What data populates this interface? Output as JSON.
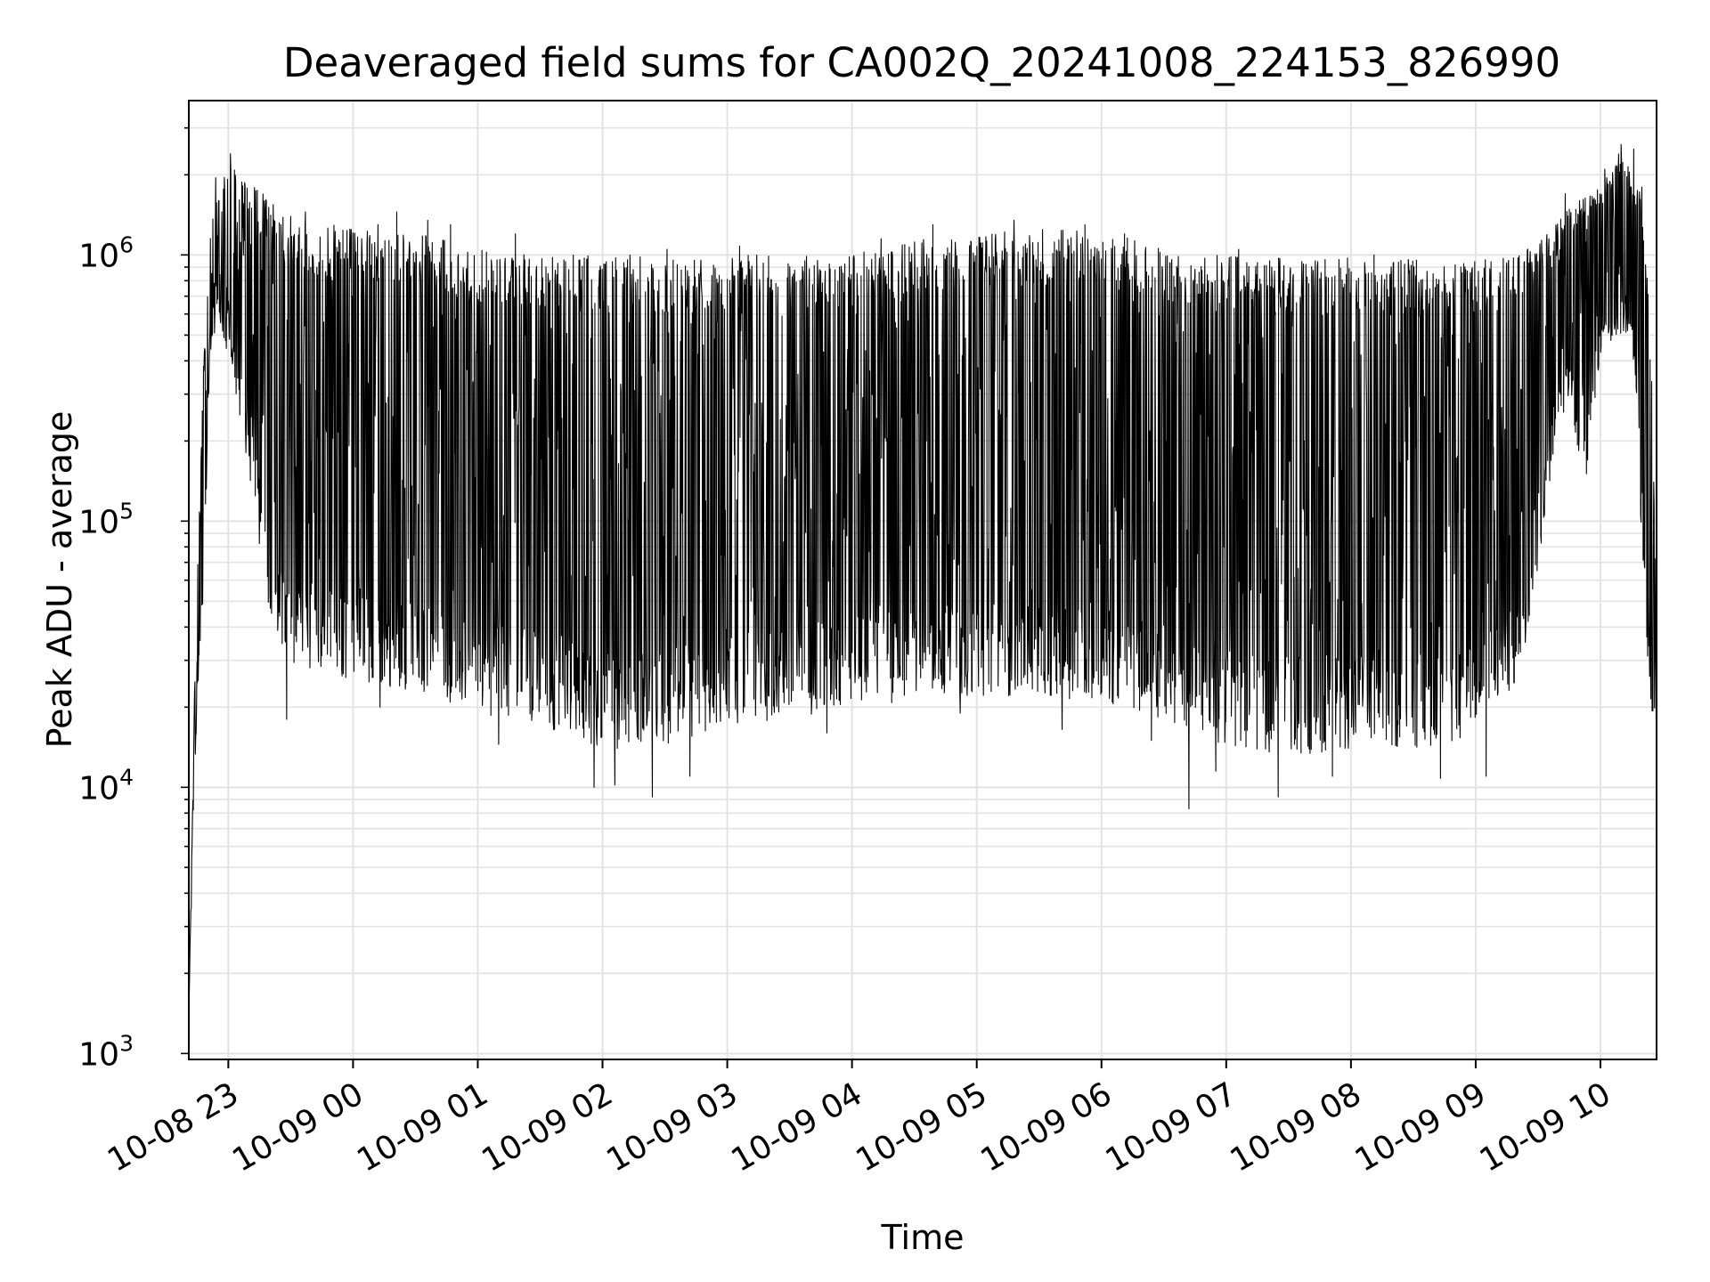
{
  "chart_data": {
    "type": "line",
    "title": "Deaveraged field sums for CA002Q_20241008_224153_826990",
    "xlabel": "Time",
    "ylabel": "Peak ADU - average",
    "yscale": "log",
    "ylim": [
      950,
      3800000
    ],
    "xlim": [
      "2024-10-08 22:41",
      "2024-10-09 10:27"
    ],
    "grid": true,
    "x_ticks": [
      {
        "value": "2024-10-08 23:00",
        "label": "10-08 23"
      },
      {
        "value": "2024-10-09 00:00",
        "label": "10-09 00"
      },
      {
        "value": "2024-10-09 01:00",
        "label": "10-09 01"
      },
      {
        "value": "2024-10-09 02:00",
        "label": "10-09 02"
      },
      {
        "value": "2024-10-09 03:00",
        "label": "10-09 03"
      },
      {
        "value": "2024-10-09 04:00",
        "label": "10-09 04"
      },
      {
        "value": "2024-10-09 05:00",
        "label": "10-09 05"
      },
      {
        "value": "2024-10-09 06:00",
        "label": "10-09 06"
      },
      {
        "value": "2024-10-09 07:00",
        "label": "10-09 07"
      },
      {
        "value": "2024-10-09 08:00",
        "label": "10-09 08"
      },
      {
        "value": "2024-10-09 09:00",
        "label": "10-09 09"
      },
      {
        "value": "2024-10-09 10:00",
        "label": "10-09 10"
      }
    ],
    "y_ticks": [
      {
        "value": 1000,
        "base": "10",
        "exp": "3"
      },
      {
        "value": 10000,
        "base": "10",
        "exp": "4"
      },
      {
        "value": 100000,
        "base": "10",
        "exp": "5"
      },
      {
        "value": 1000000,
        "base": "10",
        "exp": "6"
      }
    ],
    "series": [
      {
        "color": "#000000",
        "envelope_lower": {
          "x": [
            "2024-10-08 22:41",
            "2024-10-08 22:43",
            "2024-10-08 22:45",
            "2024-10-08 22:48",
            "2024-10-08 22:51",
            "2024-10-08 22:55",
            "2024-10-08 23:00",
            "2024-10-08 23:05",
            "2024-10-08 23:10",
            "2024-10-08 23:15",
            "2024-10-08 23:20",
            "2024-10-08 23:25",
            "2024-10-08 23:30",
            "2024-10-08 23:40",
            "2024-10-08 23:50",
            "2024-10-09 00:00",
            "2024-10-09 00:30",
            "2024-10-09 01:00",
            "2024-10-09 01:30",
            "2024-10-09 02:00",
            "2024-10-09 02:30",
            "2024-10-09 03:00",
            "2024-10-09 03:30",
            "2024-10-09 04:00",
            "2024-10-09 04:30",
            "2024-10-09 05:00",
            "2024-10-09 05:30",
            "2024-10-09 06:00",
            "2024-10-09 06:30",
            "2024-10-09 07:00",
            "2024-10-09 07:30",
            "2024-10-09 08:00",
            "2024-10-09 08:30",
            "2024-10-09 09:00",
            "2024-10-09 09:20",
            "2024-10-09 09:30",
            "2024-10-09 09:38",
            "2024-10-09 09:45",
            "2024-10-09 09:52",
            "2024-10-09 10:00",
            "2024-10-09 10:08",
            "2024-10-09 10:15",
            "2024-10-09 10:20",
            "2024-10-09 10:24",
            "2024-10-09 10:27"
          ],
          "y": [
            1400,
            6000,
            20000,
            45000,
            400000,
            600000,
            400000,
            250000,
            150000,
            80000,
            45000,
            32000,
            28000,
            27000,
            26000,
            25000,
            23000,
            19000,
            17000,
            14000,
            14000,
            17000,
            18000,
            20000,
            21000,
            22000,
            22000,
            21000,
            18000,
            14000,
            13000,
            14000,
            14000,
            15000,
            25000,
            60000,
            200000,
            300000,
            120000,
            400000,
            500000,
            500000,
            80000,
            18000,
            15000
          ]
        },
        "envelope_upper": {
          "x": [
            "2024-10-08 22:41",
            "2024-10-08 22:44",
            "2024-10-08 22:48",
            "2024-10-08 22:52",
            "2024-10-08 22:56",
            "2024-10-08 23:00",
            "2024-10-08 23:30",
            "2024-10-09 00:00",
            "2024-10-09 00:30",
            "2024-10-09 01:00",
            "2024-10-09 02:00",
            "2024-10-09 03:00",
            "2024-10-09 04:00",
            "2024-10-09 04:30",
            "2024-10-09 05:00",
            "2024-10-09 05:30",
            "2024-10-09 06:00",
            "2024-10-09 06:30",
            "2024-10-09 07:00",
            "2024-10-09 08:00",
            "2024-10-09 09:00",
            "2024-10-09 09:30",
            "2024-10-09 09:45",
            "2024-10-09 10:00",
            "2024-10-09 10:10",
            "2024-10-09 10:20",
            "2024-10-09 10:25",
            "2024-10-09 10:27"
          ],
          "y": [
            1400,
            30000,
            400000,
            1400000,
            1800000,
            2200000,
            1400000,
            1250000,
            1250000,
            1050000,
            1000000,
            1000000,
            1000000,
            1150000,
            1200000,
            1250000,
            1250000,
            1100000,
            1000000,
            980000,
            950000,
            1100000,
            1500000,
            1800000,
            2500000,
            1700000,
            400000,
            25000
          ]
        },
        "spikes": [
          [
            "2024-10-08 22:54",
            1950000
          ],
          [
            "2024-10-08 23:01",
            2400000
          ],
          [
            "2024-10-08 23:14",
            1750000
          ],
          [
            "2024-10-08 23:22",
            1350000
          ],
          [
            "2024-10-08 23:37",
            1450000
          ],
          [
            "2024-10-09 00:12",
            1300000
          ],
          [
            "2024-10-09 00:21",
            1450000
          ],
          [
            "2024-10-09 00:36",
            1350000
          ],
          [
            "2024-10-09 00:47",
            1300000
          ],
          [
            "2024-10-09 01:18",
            1200000
          ],
          [
            "2024-10-09 02:31",
            1050000
          ],
          [
            "2024-10-09 03:06",
            1080000
          ],
          [
            "2024-10-09 04:14",
            1150000
          ],
          [
            "2024-10-09 04:39",
            1300000
          ],
          [
            "2024-10-09 05:18",
            1350000
          ],
          [
            "2024-10-09 05:52",
            1300000
          ],
          [
            "2024-10-09 06:11",
            1200000
          ],
          [
            "2024-10-09 07:06",
            1050000
          ],
          [
            "2024-10-09 08:11",
            1000000
          ],
          [
            "2024-10-09 09:31",
            1100000
          ],
          [
            "2024-10-09 09:43",
            1700000
          ],
          [
            "2024-10-09 09:50",
            1600000
          ],
          [
            "2024-10-09 10:02",
            2100000
          ],
          [
            "2024-10-09 10:10",
            2600000
          ],
          [
            "2024-10-09 10:16",
            2500000
          ],
          [
            "2024-10-09 10:20",
            1800000
          ]
        ],
        "dips": [
          [
            "2024-10-08 23:28",
            18000
          ],
          [
            "2024-10-09 00:13",
            20000
          ],
          [
            "2024-10-09 01:10",
            14500
          ],
          [
            "2024-10-09 01:56",
            10000
          ],
          [
            "2024-10-09 02:06",
            10200
          ],
          [
            "2024-10-09 02:24",
            9200
          ],
          [
            "2024-10-09 02:42",
            11000
          ],
          [
            "2024-10-09 03:48",
            16000
          ],
          [
            "2024-10-09 04:52",
            19000
          ],
          [
            "2024-10-09 05:41",
            16500
          ],
          [
            "2024-10-09 06:24",
            15000
          ],
          [
            "2024-10-09 06:42",
            8300
          ],
          [
            "2024-10-09 06:55",
            11500
          ],
          [
            "2024-10-09 07:25",
            9200
          ],
          [
            "2024-10-09 07:51",
            11000
          ],
          [
            "2024-10-09 08:43",
            10800
          ],
          [
            "2024-10-09 09:05",
            11000
          ]
        ]
      }
    ]
  }
}
